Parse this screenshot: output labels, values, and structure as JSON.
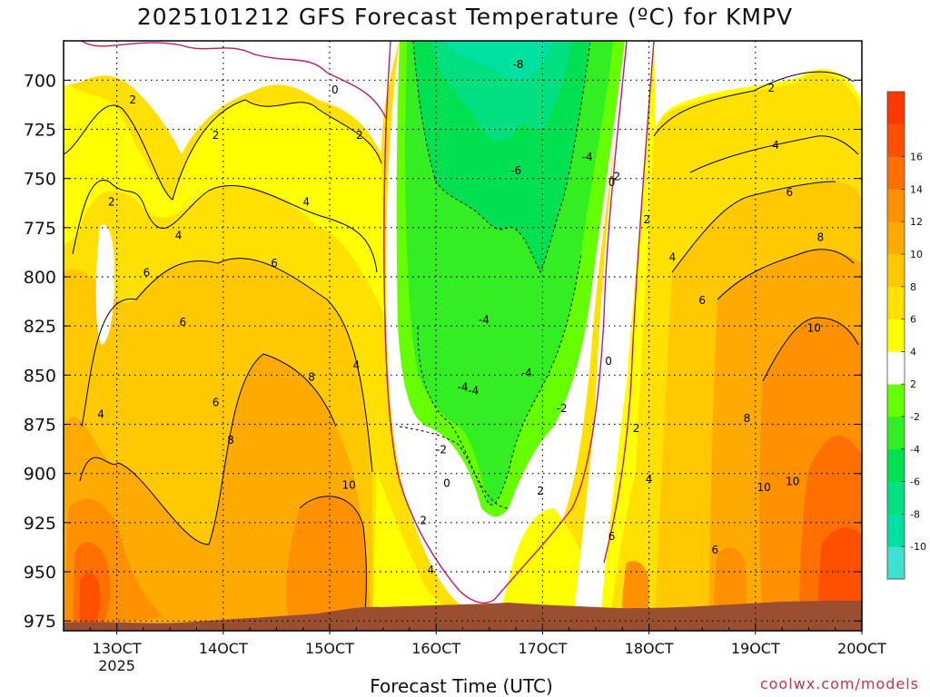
{
  "chart_data": {
    "type": "heatmap",
    "title": "2025101212 GFS Forecast Temperature (ºC) for KMPV",
    "xlabel": "Forecast Time (UTC)",
    "ylabel": "",
    "credit": "coolwx.com/models",
    "y_axis": {
      "unit": "hPa",
      "inverted": true,
      "range": [
        980,
        680
      ],
      "ticks": [
        700,
        725,
        750,
        775,
        800,
        825,
        850,
        875,
        900,
        925,
        950,
        975
      ]
    },
    "x_axis": {
      "range": [
        12.5,
        20.0
      ],
      "ticks": [
        {
          "day": 13,
          "label": "13OCT",
          "sub": "2025"
        },
        {
          "day": 14,
          "label": "14OCT",
          "sub": ""
        },
        {
          "day": 15,
          "label": "15OCT",
          "sub": ""
        },
        {
          "day": 16,
          "label": "16OCT",
          "sub": ""
        },
        {
          "day": 17,
          "label": "17OCT",
          "sub": ""
        },
        {
          "day": 18,
          "label": "18OCT",
          "sub": ""
        },
        {
          "day": 19,
          "label": "19OCT",
          "sub": ""
        },
        {
          "day": 20,
          "label": "20OCT",
          "sub": ""
        }
      ]
    },
    "grid": true,
    "colorbar": {
      "placement": "right",
      "levels": [
        -12,
        -10,
        -8,
        -6,
        -4,
        -2,
        2,
        4,
        6,
        8,
        10,
        12,
        14,
        16,
        18
      ],
      "labels": [
        -10,
        -8,
        -6,
        -4,
        -2,
        2,
        4,
        6,
        8,
        10,
        12,
        14,
        16
      ],
      "colors": [
        "#40e0d0",
        "#00e0a0",
        "#00e080",
        "#00e050",
        "#33ee22",
        "#66ff00",
        "#ffffff",
        "#ffff00",
        "#ffe000",
        "#ffc800",
        "#ffaa00",
        "#ff9000",
        "#ff7000",
        "#ff5000",
        "#ff3800"
      ]
    },
    "contour_labels": [
      {
        "v": "-8",
        "day": 16.77,
        "p": 692
      },
      {
        "v": "-6",
        "day": 16.75,
        "p": 746
      },
      {
        "v": "-4",
        "day": 17.42,
        "p": 739
      },
      {
        "v": "-4",
        "day": 16.45,
        "p": 822
      },
      {
        "v": "-4",
        "day": 16.25,
        "p": 856
      },
      {
        "v": "-4",
        "day": 16.35,
        "p": 858
      },
      {
        "v": "-4",
        "day": 16.85,
        "p": 849
      },
      {
        "v": "-2",
        "day": 16.05,
        "p": 888
      },
      {
        "v": "-2",
        "day": 17.18,
        "p": 867
      },
      {
        "v": "0",
        "day": 15.05,
        "p": 705
      },
      {
        "v": "0",
        "day": 17.65,
        "p": 752
      },
      {
        "v": "0",
        "day": 17.62,
        "p": 843
      },
      {
        "v": "0",
        "day": 16.1,
        "p": 905
      },
      {
        "v": "-2",
        "day": 17.68,
        "p": 749
      },
      {
        "v": "2",
        "day": 13.15,
        "p": 710
      },
      {
        "v": "2",
        "day": 13.93,
        "p": 728
      },
      {
        "v": "2",
        "day": 15.28,
        "p": 728
      },
      {
        "v": "2",
        "day": 12.95,
        "p": 762
      },
      {
        "v": "2",
        "day": 15.88,
        "p": 924
      },
      {
        "v": "2",
        "day": 16.98,
        "p": 909
      },
      {
        "v": "2",
        "day": 17.88,
        "p": 877
      },
      {
        "v": "2",
        "day": 17.98,
        "p": 771
      },
      {
        "v": "2",
        "day": 19.15,
        "p": 704
      },
      {
        "v": "4",
        "day": 14.78,
        "p": 762
      },
      {
        "v": "4",
        "day": 13.58,
        "p": 779
      },
      {
        "v": "4",
        "day": 15.25,
        "p": 845
      },
      {
        "v": "4",
        "day": 12.85,
        "p": 870
      },
      {
        "v": "4",
        "day": 15.95,
        "p": 949
      },
      {
        "v": "4",
        "day": 18.0,
        "p": 903
      },
      {
        "v": "4",
        "day": 18.22,
        "p": 790
      },
      {
        "v": "4",
        "day": 19.19,
        "p": 733
      },
      {
        "v": "6",
        "day": 13.28,
        "p": 798
      },
      {
        "v": "6",
        "day": 13.62,
        "p": 823
      },
      {
        "v": "6",
        "day": 13.93,
        "p": 864
      },
      {
        "v": "6",
        "day": 14.48,
        "p": 793
      },
      {
        "v": "6",
        "day": 18.5,
        "p": 812
      },
      {
        "v": "6",
        "day": 17.65,
        "p": 932
      },
      {
        "v": "6",
        "day": 18.62,
        "p": 939
      },
      {
        "v": "6",
        "day": 19.32,
        "p": 757
      },
      {
        "v": "8",
        "day": 14.07,
        "p": 883
      },
      {
        "v": "8",
        "day": 14.83,
        "p": 851
      },
      {
        "v": "8",
        "day": 18.92,
        "p": 872
      },
      {
        "v": "8",
        "day": 19.61,
        "p": 780
      },
      {
        "v": "10",
        "day": 15.18,
        "p": 906
      },
      {
        "v": "10",
        "day": 19.08,
        "p": 907
      },
      {
        "v": "10",
        "day": 19.35,
        "p": 904
      },
      {
        "v": "10",
        "day": 19.55,
        "p": 826
      }
    ]
  }
}
